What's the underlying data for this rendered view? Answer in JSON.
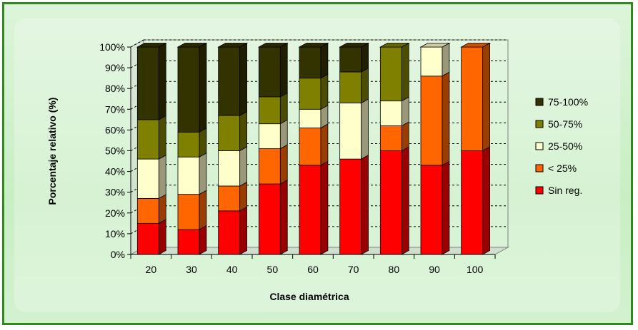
{
  "chart_data": {
    "type": "bar",
    "stacked": true,
    "percent_stacked": true,
    "three_d": true,
    "title": "",
    "xlabel": "Clase diamétrica",
    "ylabel": "Porcentaje relativo (%)",
    "ylim": [
      0,
      100
    ],
    "yticks": [
      "0%",
      "10%",
      "20%",
      "30%",
      "40%",
      "50%",
      "60%",
      "70%",
      "80%",
      "90%",
      "100%"
    ],
    "grid": true,
    "legend_position": "right",
    "categories": [
      "20",
      "30",
      "40",
      "50",
      "60",
      "70",
      "80",
      "90",
      "100"
    ],
    "series": [
      {
        "name": "Sin reg.",
        "color": "#ff0000",
        "values": [
          15,
          12,
          21,
          34,
          43,
          46,
          50,
          43,
          50
        ]
      },
      {
        "name": "< 25%",
        "color": "#ff6600",
        "values": [
          12,
          17,
          12,
          17,
          18,
          0,
          12,
          43,
          50
        ]
      },
      {
        "name": "25-50%",
        "color": "#ffffcc",
        "values": [
          19,
          18,
          17,
          12,
          9,
          27,
          12,
          14,
          0
        ]
      },
      {
        "name": "50-75%",
        "color": "#808000",
        "values": [
          19,
          12,
          17,
          13,
          15,
          15,
          26,
          0,
          0
        ]
      },
      {
        "name": "75-100%",
        "color": "#333300",
        "values": [
          35,
          41,
          33,
          24,
          15,
          12,
          0,
          0,
          0
        ]
      }
    ],
    "legend_order": [
      "75-100%",
      "50-75%",
      "25-50%",
      "< 25%",
      "Sin reg."
    ]
  }
}
